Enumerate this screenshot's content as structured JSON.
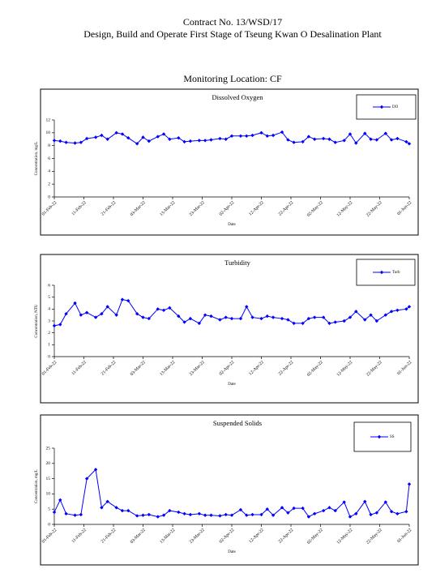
{
  "header": {
    "contract": "Contract No. 13/WSD/17",
    "title": "Design, Build and Operate First Stage of Tseung Kwan O Desalination Plant",
    "location": "Monitoring Location: CF"
  },
  "chart_data": [
    {
      "type": "line",
      "title": "Dissolved Oxygen",
      "x_label": "Date",
      "y_label": "Concentration, mg/L",
      "x": [
        "2022-02-01",
        "2022-02-03",
        "2022-02-05",
        "2022-02-08",
        "2022-02-10",
        "2022-02-12",
        "2022-02-15",
        "2022-02-17",
        "2022-02-19",
        "2022-02-22",
        "2022-02-24",
        "2022-02-26",
        "2022-03-01",
        "2022-03-03",
        "2022-03-05",
        "2022-03-08",
        "2022-03-10",
        "2022-03-12",
        "2022-03-15",
        "2022-03-17",
        "2022-03-19",
        "2022-03-22",
        "2022-03-24",
        "2022-03-26",
        "2022-03-29",
        "2022-03-31",
        "2022-04-02",
        "2022-04-05",
        "2022-04-07",
        "2022-04-09",
        "2022-04-12",
        "2022-04-14",
        "2022-04-16",
        "2022-04-19",
        "2022-04-21",
        "2022-04-23",
        "2022-04-26",
        "2022-04-28",
        "2022-04-30",
        "2022-05-03",
        "2022-05-05",
        "2022-05-07",
        "2022-05-10",
        "2022-05-12",
        "2022-05-14",
        "2022-05-17",
        "2022-05-19",
        "2022-05-21",
        "2022-05-24",
        "2022-05-26",
        "2022-05-28",
        "2022-05-31",
        "2022-06-01"
      ],
      "series": [
        {
          "name": "DO",
          "color": "#0000ff",
          "values": [
            8.8,
            8.7,
            8.5,
            8.4,
            8.5,
            9.1,
            9.3,
            9.6,
            9.0,
            10.0,
            9.8,
            9.2,
            8.3,
            9.3,
            8.7,
            9.4,
            9.8,
            9.0,
            9.2,
            8.6,
            8.7,
            8.8,
            8.8,
            8.9,
            9.1,
            9.0,
            9.5,
            9.5,
            9.5,
            9.6,
            10.0,
            9.5,
            9.6,
            10.1,
            8.9,
            8.5,
            8.6,
            9.4,
            9.0,
            9.1,
            9.0,
            8.5,
            8.8,
            9.8,
            8.4,
            9.9,
            9.0,
            8.9,
            9.9,
            8.9,
            9.1,
            8.6,
            8.3
          ]
        }
      ],
      "xlim": [
        "2022-02-01",
        "2022-06-01"
      ],
      "xticks": [
        {
          "value": "2022-02-01",
          "label": "01-Feb-22"
        },
        {
          "value": "2022-02-11",
          "label": "11-Feb-22"
        },
        {
          "value": "2022-02-21",
          "label": "21-Feb-22"
        },
        {
          "value": "2022-03-03",
          "label": "03-Mar-22"
        },
        {
          "value": "2022-03-13",
          "label": "13-Mar-22"
        },
        {
          "value": "2022-03-23",
          "label": "23-Mar-22"
        },
        {
          "value": "2022-04-02",
          "label": "02-Apr-22"
        },
        {
          "value": "2022-04-12",
          "label": "12-Apr-22"
        },
        {
          "value": "2022-04-22",
          "label": "22-Apr-22"
        },
        {
          "value": "2022-05-02",
          "label": "02-May-22"
        },
        {
          "value": "2022-05-12",
          "label": "12-May-22"
        },
        {
          "value": "2022-05-22",
          "label": "22-May-22"
        },
        {
          "value": "2022-06-01",
          "label": "01-Jun-22"
        }
      ],
      "ylim": [
        0,
        12
      ],
      "yticks": [
        0,
        2,
        4,
        6,
        8,
        10,
        12
      ],
      "legend": "top-right"
    },
    {
      "type": "line",
      "title": "Turbidity",
      "x_label": "Date",
      "y_label": "Concentration, NTU",
      "x": [
        "2022-02-01",
        "2022-02-03",
        "2022-02-05",
        "2022-02-08",
        "2022-02-10",
        "2022-02-12",
        "2022-02-15",
        "2022-02-17",
        "2022-02-19",
        "2022-02-22",
        "2022-02-24",
        "2022-02-26",
        "2022-03-01",
        "2022-03-03",
        "2022-03-05",
        "2022-03-08",
        "2022-03-10",
        "2022-03-12",
        "2022-03-15",
        "2022-03-17",
        "2022-03-19",
        "2022-03-22",
        "2022-03-24",
        "2022-03-26",
        "2022-03-29",
        "2022-03-31",
        "2022-04-02",
        "2022-04-05",
        "2022-04-07",
        "2022-04-09",
        "2022-04-12",
        "2022-04-14",
        "2022-04-16",
        "2022-04-19",
        "2022-04-21",
        "2022-04-23",
        "2022-04-26",
        "2022-04-28",
        "2022-04-30",
        "2022-05-03",
        "2022-05-05",
        "2022-05-07",
        "2022-05-10",
        "2022-05-12",
        "2022-05-14",
        "2022-05-17",
        "2022-05-19",
        "2022-05-21",
        "2022-05-24",
        "2022-05-26",
        "2022-05-28",
        "2022-05-31",
        "2022-06-01"
      ],
      "series": [
        {
          "name": "Turb",
          "color": "#0000ff",
          "values": [
            2.6,
            2.7,
            3.6,
            4.5,
            3.5,
            3.7,
            3.3,
            3.6,
            4.2,
            3.5,
            4.8,
            4.7,
            3.6,
            3.3,
            3.2,
            4.0,
            3.9,
            4.1,
            3.4,
            2.9,
            3.2,
            2.8,
            3.5,
            3.4,
            3.1,
            3.3,
            3.2,
            3.2,
            4.2,
            3.3,
            3.2,
            3.4,
            3.3,
            3.2,
            3.1,
            2.8,
            2.8,
            3.2,
            3.3,
            3.3,
            2.8,
            2.9,
            3.0,
            3.3,
            3.8,
            3.1,
            3.5,
            3.0,
            3.5,
            3.8,
            3.9,
            4.0,
            4.2
          ]
        }
      ],
      "xlim": [
        "2022-02-01",
        "2022-06-01"
      ],
      "xticks": [
        {
          "value": "2022-02-01",
          "label": "01-Feb-22"
        },
        {
          "value": "2022-02-11",
          "label": "11-Feb-22"
        },
        {
          "value": "2022-02-21",
          "label": "21-Feb-22"
        },
        {
          "value": "2022-03-03",
          "label": "03-Mar-22"
        },
        {
          "value": "2022-03-13",
          "label": "13-Mar-22"
        },
        {
          "value": "2022-03-23",
          "label": "23-Mar-22"
        },
        {
          "value": "2022-04-02",
          "label": "02-Apr-22"
        },
        {
          "value": "2022-04-12",
          "label": "12-Apr-22"
        },
        {
          "value": "2022-04-22",
          "label": "22-Apr-22"
        },
        {
          "value": "2022-05-02",
          "label": "02-May-22"
        },
        {
          "value": "2022-05-12",
          "label": "12-May-22"
        },
        {
          "value": "2022-05-22",
          "label": "22-May-22"
        },
        {
          "value": "2022-06-01",
          "label": "01-Jun-22"
        }
      ],
      "ylim": [
        0,
        6
      ],
      "yticks": [
        0,
        1,
        2,
        3,
        4,
        5,
        6
      ],
      "legend": "top-right"
    },
    {
      "type": "line",
      "title": "Suspended Solids",
      "x_label": "Date",
      "y_label": "Concentration, mg/L",
      "x": [
        "2022-02-01",
        "2022-02-03",
        "2022-02-05",
        "2022-02-08",
        "2022-02-10",
        "2022-02-12",
        "2022-02-15",
        "2022-02-17",
        "2022-02-19",
        "2022-02-22",
        "2022-02-24",
        "2022-02-26",
        "2022-03-01",
        "2022-03-03",
        "2022-03-05",
        "2022-03-08",
        "2022-03-10",
        "2022-03-12",
        "2022-03-15",
        "2022-03-17",
        "2022-03-19",
        "2022-03-22",
        "2022-03-24",
        "2022-03-26",
        "2022-03-29",
        "2022-03-31",
        "2022-04-02",
        "2022-04-05",
        "2022-04-07",
        "2022-04-09",
        "2022-04-12",
        "2022-04-14",
        "2022-04-16",
        "2022-04-19",
        "2022-04-21",
        "2022-04-23",
        "2022-04-26",
        "2022-04-28",
        "2022-04-30",
        "2022-05-03",
        "2022-05-05",
        "2022-05-07",
        "2022-05-10",
        "2022-05-12",
        "2022-05-14",
        "2022-05-17",
        "2022-05-19",
        "2022-05-21",
        "2022-05-24",
        "2022-05-26",
        "2022-05-28",
        "2022-05-31",
        "2022-06-01"
      ],
      "series": [
        {
          "name": "SS",
          "color": "#0000ff",
          "values": [
            4,
            8,
            3.5,
            3,
            3.2,
            15,
            18,
            5.5,
            7.5,
            5.5,
            4.5,
            4.5,
            2.8,
            3,
            3.2,
            2.5,
            3,
            4.5,
            4,
            3.5,
            3.2,
            3.5,
            3,
            3,
            2.8,
            3.2,
            3,
            4.8,
            3,
            3.2,
            3.2,
            5,
            3,
            5.5,
            3.8,
            5.3,
            5.3,
            2.5,
            3.5,
            4.5,
            5.5,
            4.5,
            7.3,
            2.5,
            3.5,
            7.5,
            3.2,
            3.8,
            7.3,
            4.2,
            3.5,
            4.2,
            13.2
          ]
        }
      ],
      "xlim": [
        "2022-02-01",
        "2022-06-01"
      ],
      "xticks": [
        {
          "value": "2022-02-01",
          "label": "01-Feb-22"
        },
        {
          "value": "2022-02-11",
          "label": "11-Feb-22"
        },
        {
          "value": "2022-02-21",
          "label": "21-Feb-22"
        },
        {
          "value": "2022-03-03",
          "label": "03-Mar-22"
        },
        {
          "value": "2022-03-13",
          "label": "13-Mar-22"
        },
        {
          "value": "2022-03-23",
          "label": "23-Mar-22"
        },
        {
          "value": "2022-04-02",
          "label": "02-Apr-22"
        },
        {
          "value": "2022-04-12",
          "label": "12-Apr-22"
        },
        {
          "value": "2022-04-22",
          "label": "22-Apr-22"
        },
        {
          "value": "2022-05-02",
          "label": "02-May-22"
        },
        {
          "value": "2022-05-12",
          "label": "12-May-22"
        },
        {
          "value": "2022-05-22",
          "label": "22-May-22"
        },
        {
          "value": "2022-06-01",
          "label": "01-Jun-22"
        }
      ],
      "ylim": [
        0,
        25
      ],
      "yticks": [
        0,
        5,
        10,
        15,
        20,
        25
      ],
      "legend": "top-right"
    }
  ]
}
